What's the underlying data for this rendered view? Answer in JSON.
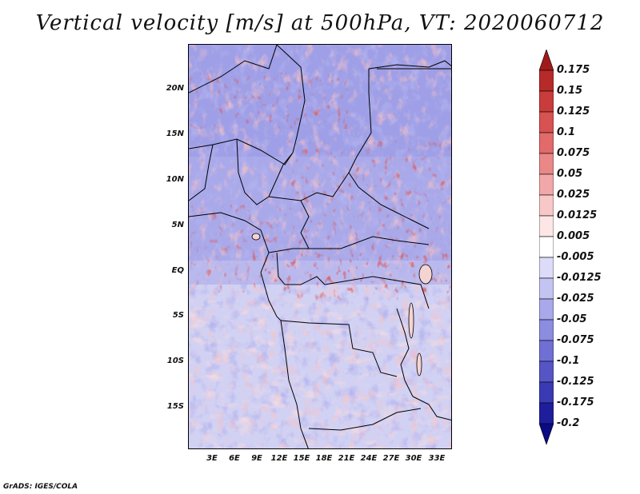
{
  "title": "Vertical velocity [m/s] at 500hPa, VT: 2020060712",
  "footer": "GrADS: IGES/COLA",
  "y_labels": [
    "20N",
    "15N",
    "10N",
    "5N",
    "EQ",
    "5S",
    "10S",
    "15S"
  ],
  "x_labels": [
    "3E",
    "6E",
    "9E",
    "12E",
    "15E",
    "18E",
    "21E",
    "24E",
    "27E",
    "30E",
    "33E"
  ],
  "colorbar": {
    "labels": [
      "0.175",
      "0.15",
      "0.125",
      "0.1",
      "0.075",
      "0.05",
      "0.025",
      "0.0125",
      "0.005",
      "-0.005",
      "-0.0125",
      "-0.025",
      "-0.05",
      "-0.075",
      "-0.1",
      "-0.125",
      "-0.175",
      "-0.2"
    ],
    "colors": [
      "#a11a1a",
      "#b72a2a",
      "#c93c3c",
      "#d85252",
      "#e26a6a",
      "#ea8888",
      "#f2a8a8",
      "#f8c8c8",
      "#fde6e6",
      "#ffffff",
      "#dcdcf8",
      "#c4c4f2",
      "#a8a8ea",
      "#8c8ce0",
      "#7070d4",
      "#5555c6",
      "#3a3ab4",
      "#1e1e9c",
      "#0a0a84"
    ]
  },
  "chart_data": {
    "type": "heatmap",
    "variable": "Vertical velocity",
    "units": "m/s",
    "level": "500hPa",
    "valid_time": "2020060712",
    "lon_range": [
      0,
      35
    ],
    "lat_range": [
      -20,
      24
    ]
  }
}
